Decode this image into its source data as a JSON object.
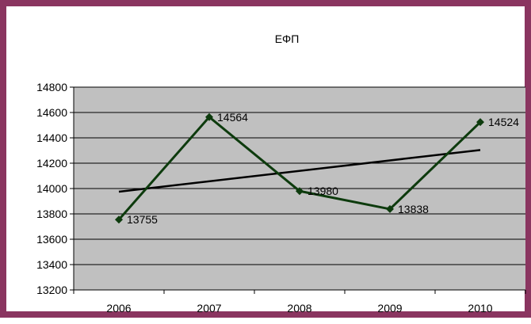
{
  "chart_data": {
    "type": "line",
    "title": "ΕΦΠ",
    "categories": [
      "2006",
      "2007",
      "2008",
      "2009",
      "2010"
    ],
    "series": [
      {
        "values": [
          13755,
          14564,
          13980,
          13838,
          14524
        ]
      }
    ],
    "trendline": {
      "type": "linear",
      "values": [
        13975,
        14057,
        14140,
        14222,
        14304
      ]
    },
    "ylim": [
      13200,
      14800
    ],
    "yticks": [
      "13200",
      "13400",
      "13600",
      "13800",
      "14000",
      "14200",
      "14400",
      "14600",
      "14800"
    ],
    "data_labels": [
      "13755",
      "14564",
      "13980",
      "13838",
      "14524"
    ],
    "grid": true,
    "legend": "none",
    "xlabel": "",
    "ylabel": "",
    "colors": {
      "plot_background": "#c0c0c0",
      "series_line": "#0d3b0d",
      "trendline": "#000000",
      "frame": "#8a3560"
    }
  }
}
